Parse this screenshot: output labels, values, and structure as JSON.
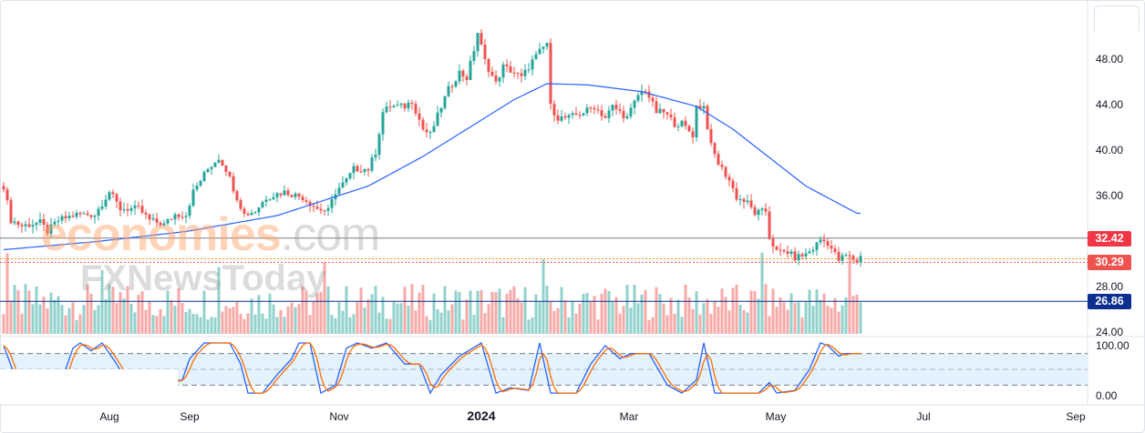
{
  "chart_data": {
    "type": "candlestick",
    "watermark": {
      "line1_a": "economies",
      "line1_b": ".com",
      "line2": "FXNewsToday"
    },
    "price_axis": {
      "ticks": [
        "48.00",
        "44.00",
        "40.00",
        "36.00",
        "28.00",
        "24.00"
      ],
      "tick_values": [
        48,
        44,
        40,
        36,
        28,
        24
      ],
      "range": [
        23.8,
        53.4
      ]
    },
    "price_lines": [
      {
        "label": "32.42",
        "value": 32.42,
        "color": "#f23645",
        "style": "solid",
        "line_color": "#787b86"
      },
      {
        "label": "30.29",
        "value": 30.29,
        "color": "#ef5350",
        "style": "dotted",
        "line_color": "#ef5350"
      },
      {
        "label": "26.86",
        "value": 26.86,
        "color": "#0d2f8f",
        "style": "solid",
        "line_color": "#0d2f8f"
      }
    ],
    "extra_dotted_value": 30.6,
    "colors": {
      "up": "#26a69a",
      "down": "#ef5350",
      "ma": "#2962ff",
      "stoch_k": "#2962ff",
      "stoch_d": "#ff6d00",
      "stoch_band": "#e3f2fd"
    },
    "closes_by_day": [
      [
        0,
        37
      ],
      [
        2,
        34
      ],
      [
        5,
        33.5
      ],
      [
        10,
        33.8
      ],
      [
        12,
        33
      ],
      [
        15,
        34
      ],
      [
        20,
        34.5
      ],
      [
        25,
        34.5
      ],
      [
        29,
        36.5
      ],
      [
        32,
        35
      ],
      [
        37,
        35
      ],
      [
        40,
        34
      ],
      [
        44,
        33.6
      ],
      [
        47,
        34.5
      ],
      [
        50,
        34.5
      ],
      [
        52,
        36.5
      ],
      [
        56,
        38.5
      ],
      [
        59,
        39.5
      ],
      [
        61,
        38.5
      ],
      [
        64,
        36
      ],
      [
        66,
        34.5
      ],
      [
        69,
        34.8
      ],
      [
        72,
        36
      ],
      [
        77,
        36.5
      ],
      [
        82,
        36
      ],
      [
        86,
        35
      ],
      [
        89,
        34.8
      ],
      [
        91,
        36.5
      ],
      [
        94,
        37.5
      ],
      [
        96,
        38.5
      ],
      [
        100,
        38.5
      ],
      [
        102,
        40
      ],
      [
        104,
        43.5
      ],
      [
        106,
        44
      ],
      [
        110,
        44
      ],
      [
        112,
        44.5
      ],
      [
        115,
        42
      ],
      [
        117,
        41.5
      ],
      [
        120,
        44
      ],
      [
        122,
        45.5
      ],
      [
        125,
        47
      ],
      [
        127,
        46.5
      ],
      [
        129,
        49
      ],
      [
        130,
        50.5
      ],
      [
        132,
        48
      ],
      [
        135,
        46
      ],
      [
        137,
        47.5
      ],
      [
        140,
        47
      ],
      [
        142,
        46.5
      ],
      [
        145,
        48
      ],
      [
        149,
        49.6
      ],
      [
        150,
        44
      ],
      [
        152,
        43
      ],
      [
        155,
        43
      ],
      [
        159,
        43.5
      ],
      [
        162,
        44
      ],
      [
        165,
        43
      ],
      [
        167,
        44
      ],
      [
        171,
        43
      ],
      [
        174,
        45
      ],
      [
        176,
        45.5
      ],
      [
        179,
        43.5
      ],
      [
        181,
        43.5
      ],
      [
        184,
        42.5
      ],
      [
        186,
        42.5
      ],
      [
        189,
        41.5
      ],
      [
        190,
        44
      ],
      [
        192,
        44
      ],
      [
        194,
        40.5
      ],
      [
        196,
        39
      ],
      [
        199,
        37.5
      ],
      [
        201,
        36
      ],
      [
        204,
        35.5
      ],
      [
        206,
        34.6
      ],
      [
        209,
        34.8
      ],
      [
        210,
        32.5
      ],
      [
        212,
        31.2
      ],
      [
        215,
        31.2
      ],
      [
        217,
        30.7
      ],
      [
        220,
        31
      ],
      [
        222,
        31.5
      ],
      [
        224,
        32.3
      ],
      [
        226,
        32
      ],
      [
        229,
        30.5
      ],
      [
        231,
        30.9
      ],
      [
        234,
        30.4
      ],
      [
        235,
        30.8
      ]
    ],
    "ma_by_day": [
      [
        0,
        31.4
      ],
      [
        25,
        32.1
      ],
      [
        50,
        33
      ],
      [
        75,
        34.4
      ],
      [
        100,
        37
      ],
      [
        115,
        39.6
      ],
      [
        130,
        42.6
      ],
      [
        140,
        44.6
      ],
      [
        149,
        46
      ],
      [
        160,
        45.9
      ],
      [
        175,
        45.3
      ],
      [
        190,
        44
      ],
      [
        200,
        42
      ],
      [
        210,
        39.5
      ],
      [
        220,
        37
      ],
      [
        234,
        34.6
      ]
    ],
    "volume_spikes_days": [
      1,
      27,
      59,
      88,
      148,
      208,
      232
    ],
    "stoch_axis": {
      "ticks": [
        "100.00",
        "0.00"
      ],
      "levels": [
        80,
        50,
        20
      ]
    },
    "stoch_k_by_day": [
      [
        0,
        95
      ],
      [
        4,
        20
      ],
      [
        10,
        20
      ],
      [
        15,
        10
      ],
      [
        19,
        90
      ],
      [
        21,
        100
      ],
      [
        24,
        85
      ],
      [
        25,
        90
      ],
      [
        27,
        100
      ],
      [
        31,
        60
      ],
      [
        35,
        10
      ],
      [
        40,
        20
      ],
      [
        49,
        30
      ],
      [
        51,
        70
      ],
      [
        55,
        100
      ],
      [
        62,
        100
      ],
      [
        65,
        60
      ],
      [
        67,
        5
      ],
      [
        71,
        5
      ],
      [
        75,
        40
      ],
      [
        79,
        70
      ],
      [
        81,
        100
      ],
      [
        84,
        100
      ],
      [
        87,
        5
      ],
      [
        91,
        20
      ],
      [
        94,
        90
      ],
      [
        97,
        100
      ],
      [
        101,
        90
      ],
      [
        105,
        100
      ],
      [
        110,
        60
      ],
      [
        114,
        60
      ],
      [
        117,
        5
      ],
      [
        120,
        40
      ],
      [
        125,
        75
      ],
      [
        131,
        100
      ],
      [
        135,
        5
      ],
      [
        139,
        15
      ],
      [
        144,
        10
      ],
      [
        147,
        100
      ],
      [
        150,
        5
      ],
      [
        157,
        5
      ],
      [
        161,
        60
      ],
      [
        165,
        95
      ],
      [
        169,
        70
      ],
      [
        172,
        80
      ],
      [
        177,
        80
      ],
      [
        182,
        20
      ],
      [
        186,
        5
      ],
      [
        190,
        30
      ],
      [
        192,
        100
      ],
      [
        195,
        5
      ],
      [
        200,
        5
      ],
      [
        207,
        5
      ],
      [
        210,
        25
      ],
      [
        212,
        5
      ],
      [
        217,
        10
      ],
      [
        221,
        50
      ],
      [
        224,
        100
      ],
      [
        226,
        95
      ],
      [
        229,
        75
      ],
      [
        231,
        80
      ],
      [
        234,
        80
      ]
    ],
    "time_axis": [
      "Aug",
      "Sep",
      "Nov",
      "2024",
      "Mar",
      "May",
      "Jul",
      "Sep"
    ]
  }
}
